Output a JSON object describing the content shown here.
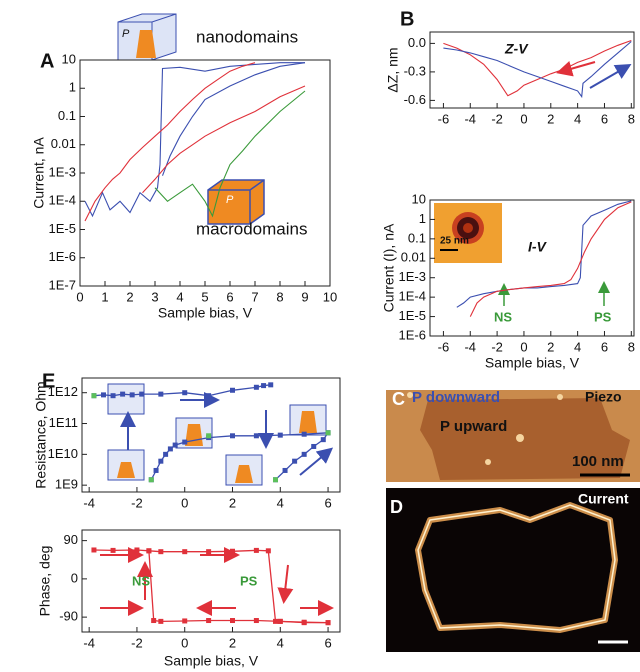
{
  "chart_data": [
    {
      "type": "line",
      "log_y": true,
      "xlabel": "Sample bias, V",
      "ylabel": "Current, nA",
      "xlim": [
        0,
        10
      ],
      "ylim": [
        1e-07,
        10
      ],
      "xticks": [
        0,
        1,
        2,
        3,
        4,
        5,
        6,
        7,
        8,
        9,
        10
      ],
      "yticks": [
        {
          "value": 1e-07,
          "label": "1E-7"
        },
        {
          "value": 1e-06,
          "label": "1E-6"
        },
        {
          "value": 1e-05,
          "label": "1E-5"
        },
        {
          "value": 0.0001,
          "label": "1E-4"
        },
        {
          "value": 0.001,
          "label": "1E-3"
        },
        0.01,
        0.1,
        1,
        10
      ],
      "annotations": [
        "A",
        "nanodomains",
        "macrodomains",
        "P",
        "P"
      ],
      "series": [
        {
          "color": "#3b4fb0",
          "x": [
            0.2,
            0.5,
            0.9,
            1.2,
            1.6,
            2.0,
            2.4,
            2.8,
            3.1,
            3.2,
            3.3,
            4.0,
            5.0,
            6.0,
            7.0,
            8.0,
            9.0
          ],
          "values": [
            0.0001,
            3e-05,
            0.0002,
            5e-05,
            0.0001,
            4e-05,
            0.0002,
            0.0001,
            0.0003,
            0.002,
            5,
            5.5,
            4,
            6,
            7,
            8,
            8
          ]
        },
        {
          "color": "#3b4fb0",
          "x": [
            9.0,
            8.0,
            7.0,
            6.0,
            5.0,
            4.5,
            4.0,
            3.6,
            3.3
          ],
          "values": [
            8,
            6,
            3,
            1.2,
            0.4,
            0.1,
            0.02,
            0.004,
            0.0008
          ]
        },
        {
          "color": "#e0313a",
          "x": [
            0.2,
            0.6,
            1.0,
            1.3,
            1.6,
            2.0,
            2.5,
            3.0,
            3.5,
            4.0,
            4.5,
            5.0,
            5.5,
            6.0,
            6.5,
            7.0
          ],
          "values": [
            2e-05,
            0.0001,
            0.0003,
            0.0006,
            0.001,
            0.003,
            0.008,
            0.02,
            0.05,
            0.15,
            0.4,
            1,
            2,
            4,
            6,
            8
          ]
        },
        {
          "color": "#e0313a",
          "x": [
            2.5,
            3.0,
            3.5,
            4.0,
            4.5,
            5.0,
            6.0,
            7.0,
            8.0,
            9.0
          ],
          "values": [
            0.0002,
            0.0006,
            0.002,
            0.005,
            0.01,
            0.02,
            0.06,
            0.15,
            0.5,
            1.2
          ]
        },
        {
          "color": "#3a9a3a",
          "x": [
            3.0,
            3.5,
            4.0,
            4.5,
            5.0,
            5.3,
            5.6,
            6.0,
            6.5,
            7.0,
            8.0,
            9.0
          ],
          "values": [
            0.0003,
            0.0001,
            0.0002,
            0.0004,
            0.0001,
            3e-05,
            0.0003,
            0.002,
            0.006,
            0.02,
            0.15,
            0.8
          ]
        }
      ]
    },
    {
      "type": "line",
      "ylabel": "ΔZ, nm",
      "xlim": [
        -7,
        8.2
      ],
      "ylim": [
        -0.68,
        0.12
      ],
      "xticks": [
        -6,
        -4,
        -2,
        0,
        2,
        4,
        6,
        8
      ],
      "yticks": [
        {
          "value": 0,
          "label": "0.0"
        },
        -0.3,
        -0.6
      ],
      "annotations": [
        "B",
        "Z-V"
      ],
      "series": [
        {
          "color": "#e0313a",
          "x": [
            -6,
            -5,
            -4,
            -3,
            -2,
            -1.2,
            -0.5,
            0,
            1,
            2,
            3,
            4,
            5,
            6,
            7,
            8
          ],
          "values": [
            0.0,
            -0.05,
            -0.12,
            -0.22,
            -0.38,
            -0.55,
            -0.5,
            -0.44,
            -0.38,
            -0.32,
            -0.27,
            -0.2,
            -0.15,
            -0.08,
            -0.02,
            0.03
          ]
        },
        {
          "color": "#3b4fb0",
          "x": [
            -6,
            -5,
            -4,
            -3,
            -2,
            -1,
            0,
            1,
            2,
            3,
            4,
            4.3,
            4.4,
            5,
            6,
            7,
            8
          ],
          "values": [
            -0.05,
            -0.07,
            -0.1,
            -0.14,
            -0.18,
            -0.24,
            -0.3,
            -0.35,
            -0.4,
            -0.45,
            -0.5,
            -0.56,
            -0.42,
            -0.35,
            -0.22,
            -0.1,
            0.02
          ]
        }
      ]
    },
    {
      "type": "line",
      "log_y": true,
      "xlabel": "Sample bias, V",
      "ylabel": "Current (I), nA",
      "xlim": [
        -7,
        8.2
      ],
      "ylim": [
        1e-06,
        10
      ],
      "xticks": [
        -6,
        -4,
        -2,
        0,
        2,
        4,
        6,
        8
      ],
      "yticks": [
        {
          "value": 1e-06,
          "label": "1E-6"
        },
        {
          "value": 1e-05,
          "label": "1E-5"
        },
        {
          "value": 0.0001,
          "label": "1E-4"
        },
        {
          "value": 0.001,
          "label": "1E-3"
        },
        0.01,
        0.1,
        1,
        10
      ],
      "annotations": [
        "I-V",
        "NS",
        "PS",
        "25 nm"
      ],
      "series": [
        {
          "color": "#3b4fb0",
          "x": [
            -5,
            -4.5,
            -4,
            -3,
            -2,
            -1,
            0,
            1,
            2,
            3,
            4,
            4.2,
            4.4,
            5,
            6,
            7,
            8
          ],
          "values": [
            3e-05,
            5e-05,
            0.0001,
            0.00015,
            0.0002,
            0.00025,
            0.0003,
            0.0003,
            0.00035,
            0.0004,
            0.0005,
            0.001,
            0.5,
            1.5,
            3,
            6,
            9
          ]
        },
        {
          "color": "#e0313a",
          "x": [
            -4,
            -3.5,
            -3,
            -2,
            -1,
            0,
            1,
            2,
            3,
            3.5,
            4,
            4.5,
            5,
            6,
            7,
            8
          ],
          "values": [
            1e-05,
            5e-05,
            0.0001,
            0.0002,
            0.00025,
            0.0003,
            0.00035,
            0.0004,
            0.0005,
            0.0008,
            0.003,
            0.02,
            0.1,
            1,
            4,
            8
          ]
        }
      ]
    },
    {
      "type": "line",
      "log_y": true,
      "ylabel": "Resistance, Ohm",
      "xlim": [
        -4.3,
        6.5
      ],
      "ylim": [
        600000000.0,
        3000000000000.0
      ],
      "xticks": [
        -4,
        -2,
        0,
        2,
        4,
        6
      ],
      "yticks": [
        {
          "value": 1000000000.0,
          "label": "1E9"
        },
        {
          "value": 10000000000.0,
          "label": "1E10"
        },
        {
          "value": 100000000000.0,
          "label": "1E11"
        },
        {
          "value": 1000000000000.0,
          "label": "1E12"
        }
      ],
      "annotations": [
        "E"
      ],
      "series": [
        {
          "color": "#3b4fb0",
          "marker": "square",
          "x": [
            -3.8,
            -3.4,
            -3.0,
            -2.6,
            -2.2,
            -1.8,
            -1.0,
            0.0,
            1.0,
            2.0,
            3.0,
            3.3,
            3.6
          ],
          "values": [
            800000000000.0,
            850000000000.0,
            800000000000.0,
            900000000000.0,
            850000000000.0,
            900000000000.0,
            900000000000.0,
            1000000000000.0,
            800000000000.0,
            1200000000000.0,
            1500000000000.0,
            1700000000000.0,
            1800000000000.0
          ]
        },
        {
          "color": "#3b4fb0",
          "marker": "square",
          "x": [
            -1.4,
            -1.2,
            -1.0,
            -0.8,
            -0.6,
            -0.4,
            0.0,
            1.0,
            2.0,
            3.0,
            4.0,
            5.0,
            6.0
          ],
          "values": [
            1500000000.0,
            3000000000.0,
            6000000000.0,
            10000000000.0,
            15000000000.0,
            20000000000.0,
            25000000000.0,
            35000000000.0,
            40000000000.0,
            40000000000.0,
            42000000000.0,
            45000000000.0,
            50000000000.0
          ]
        },
        {
          "color": "#3b4fb0",
          "marker": "square",
          "x": [
            3.8,
            4.2,
            4.6,
            5.0,
            5.4,
            5.8,
            6.0
          ],
          "values": [
            1500000000.0,
            3000000000.0,
            6000000000.0,
            10000000000.0,
            18000000000.0,
            30000000000.0,
            50000000000.0
          ]
        },
        {
          "color": "#5cc05c",
          "marker": "square",
          "x": [
            -3.8,
            -1.4,
            1.0,
            3.8,
            6.0
          ],
          "values": [
            800000000000.0,
            1500000000.0,
            40000000000.0,
            1500000000.0,
            50000000000.0
          ]
        }
      ]
    },
    {
      "type": "line",
      "xlabel": "Sample bias, V",
      "ylabel": "Phase, deg",
      "xlim": [
        -4.3,
        6.5
      ],
      "ylim": [
        -125,
        115
      ],
      "xticks": [
        -4,
        -2,
        0,
        2,
        4,
        6
      ],
      "yticks": [
        90,
        0,
        -90
      ],
      "annotations": [
        "NS",
        "PS"
      ],
      "series": [
        {
          "color": "#e0313a",
          "marker": "square",
          "x": [
            -3.8,
            -3.0,
            -2.0,
            -1.5,
            -1.0,
            0.0,
            1.0,
            2.0,
            3.0,
            3.5,
            3.8,
            4.0,
            5.0,
            6.0
          ],
          "values": [
            68,
            67,
            68,
            66,
            64,
            64,
            64,
            65,
            67,
            66,
            -100,
            -100,
            -103,
            -103
          ]
        },
        {
          "color": "#e0313a",
          "marker": "square",
          "x": [
            6.0,
            5.0,
            4.0,
            3.0,
            2.0,
            1.0,
            0.0,
            -1.0,
            -1.3,
            -1.5
          ],
          "values": [
            -103,
            -102,
            -100,
            -98,
            -98,
            -98,
            -99,
            -100,
            -98,
            66
          ]
        }
      ]
    }
  ],
  "images": [
    {
      "label": "C",
      "texts": [
        "P downward",
        "Piezo",
        "P upward",
        "100 nm"
      ]
    },
    {
      "label": "D",
      "texts": [
        "Current"
      ]
    }
  ]
}
